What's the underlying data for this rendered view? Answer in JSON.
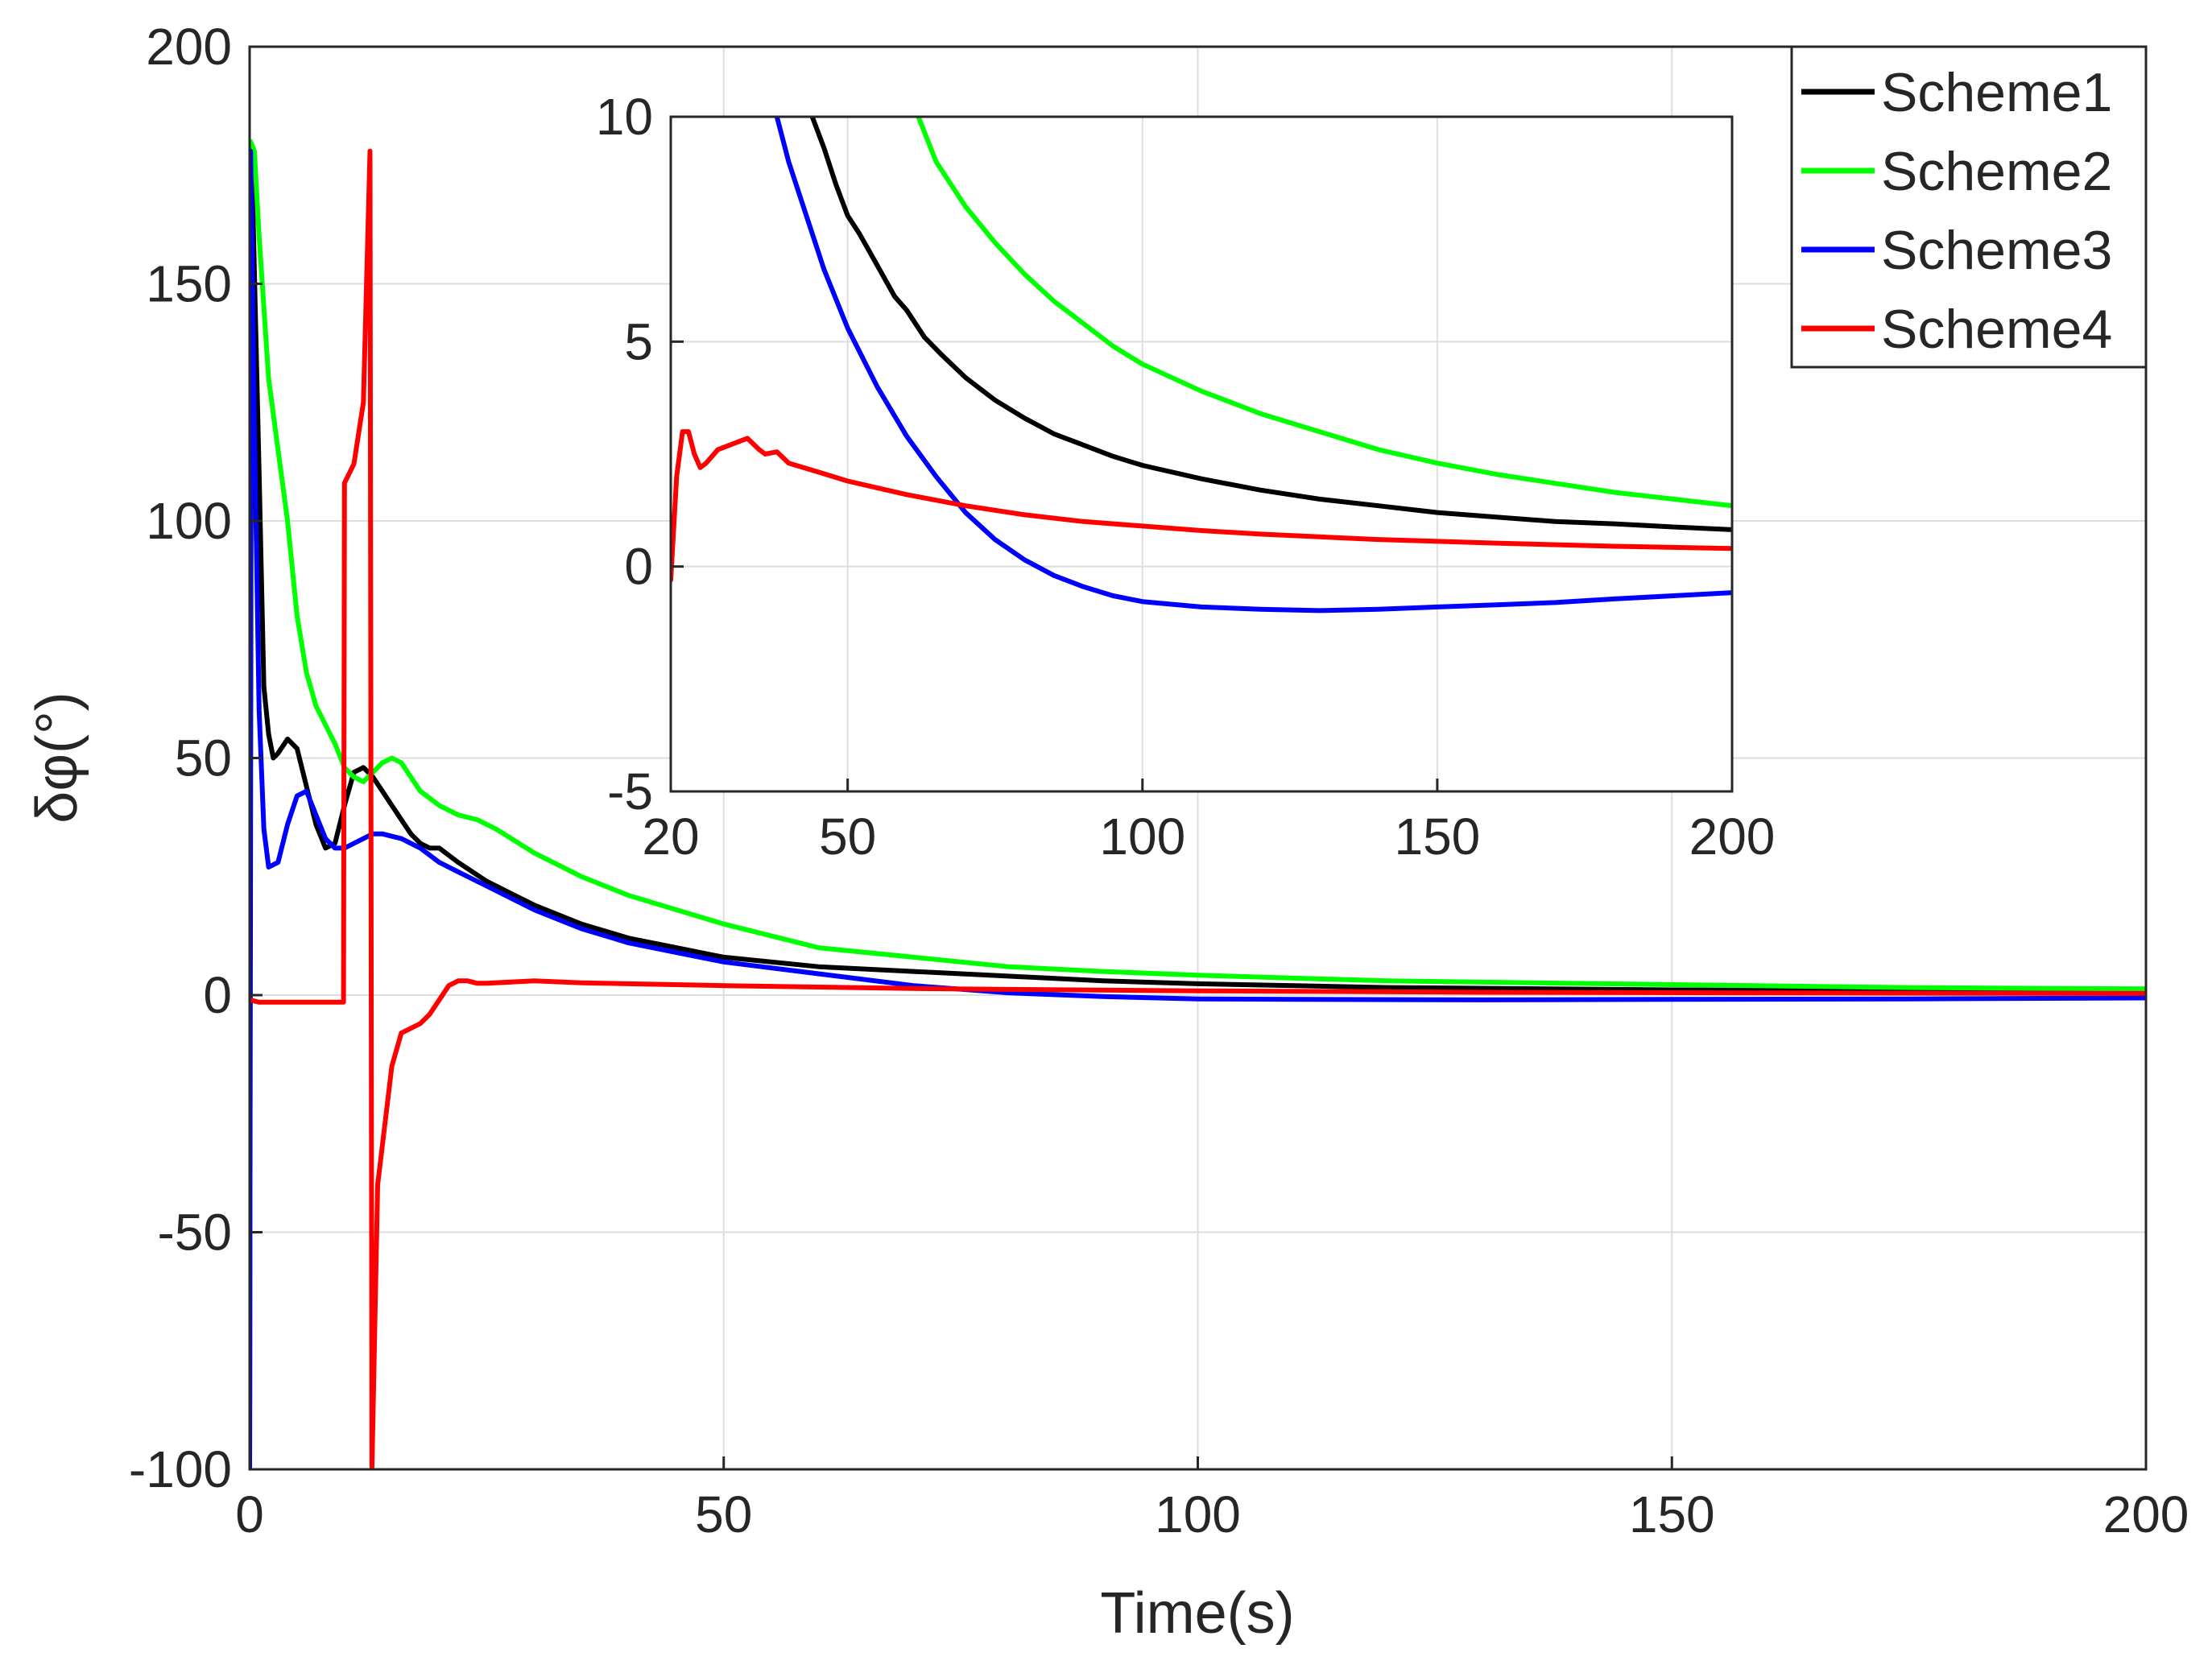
{
  "chart_data": {
    "type": "line",
    "main": {
      "xlabel": "Time(s)",
      "ylabel": "δφ(°)",
      "xlim": [
        0,
        200
      ],
      "ylim": [
        -100,
        200
      ],
      "xticks": [
        0,
        50,
        100,
        150,
        200
      ],
      "yticks": [
        -100,
        -50,
        0,
        50,
        100,
        150,
        200
      ],
      "grid": true,
      "series": [
        {
          "name": "Scheme1",
          "color": "#000000",
          "points": [
            [
              0,
              -100
            ],
            [
              0.2,
              178
            ],
            [
              1,
              110
            ],
            [
              1.5,
              65
            ],
            [
              2,
              55
            ],
            [
              2.5,
              50
            ],
            [
              3,
              51
            ],
            [
              4,
              54
            ],
            [
              5,
              52
            ],
            [
              6,
              44
            ],
            [
              7,
              36
            ],
            [
              8,
              31
            ],
            [
              9,
              32
            ],
            [
              10,
              40
            ],
            [
              11,
              47
            ],
            [
              12,
              48
            ],
            [
              13,
              46
            ],
            [
              14,
              43
            ],
            [
              15,
              40
            ],
            [
              16,
              37
            ],
            [
              17,
              34
            ],
            [
              18,
              32
            ],
            [
              19,
              31
            ],
            [
              20,
              31
            ],
            [
              22,
              28
            ],
            [
              25,
              24
            ],
            [
              30,
              19
            ],
            [
              35,
              15
            ],
            [
              40,
              12
            ],
            [
              45,
              10
            ],
            [
              50,
              8
            ],
            [
              60,
              6
            ],
            [
              70,
              5
            ],
            [
              80,
              4
            ],
            [
              90,
              3
            ],
            [
              100,
              2.4
            ],
            [
              120,
              1.6
            ],
            [
              150,
              1.1
            ],
            [
              175,
              0.9
            ],
            [
              200,
              0.8
            ]
          ]
        },
        {
          "name": "Scheme2",
          "color": "#00ff00",
          "points": [
            [
              0,
              -100
            ],
            [
              0.1,
              180
            ],
            [
              0.5,
              178
            ],
            [
              1,
              160
            ],
            [
              2,
              130
            ],
            [
              3,
              115
            ],
            [
              4,
              100
            ],
            [
              5,
              80
            ],
            [
              6,
              68
            ],
            [
              7,
              61
            ],
            [
              8,
              57
            ],
            [
              9,
              53
            ],
            [
              10,
              48
            ],
            [
              11,
              46
            ],
            [
              12,
              45
            ],
            [
              13,
              47
            ],
            [
              14,
              49
            ],
            [
              15,
              50
            ],
            [
              16,
              49
            ],
            [
              17,
              46
            ],
            [
              18,
              43
            ],
            [
              20,
              40
            ],
            [
              22,
              38
            ],
            [
              24,
              37
            ],
            [
              26,
              35
            ],
            [
              30,
              30
            ],
            [
              35,
              25
            ],
            [
              40,
              21
            ],
            [
              45,
              18
            ],
            [
              50,
              15
            ],
            [
              60,
              10
            ],
            [
              70,
              8
            ],
            [
              80,
              6
            ],
            [
              90,
              5
            ],
            [
              100,
              4.2
            ],
            [
              120,
              3
            ],
            [
              150,
              2.2
            ],
            [
              175,
              1.6
            ],
            [
              200,
              1.3
            ]
          ]
        },
        {
          "name": "Scheme3",
          "color": "#0000ff",
          "points": [
            [
              0,
              -100
            ],
            [
              0.1,
              178
            ],
            [
              0.5,
              120
            ],
            [
              1,
              60
            ],
            [
              1.5,
              35
            ],
            [
              2,
              27
            ],
            [
              3,
              28
            ],
            [
              4,
              36
            ],
            [
              5,
              42
            ],
            [
              6,
              43
            ],
            [
              7,
              38
            ],
            [
              8,
              33
            ],
            [
              9,
              31
            ],
            [
              10,
              31
            ],
            [
              11,
              32
            ],
            [
              12,
              33
            ],
            [
              13,
              34
            ],
            [
              14,
              34
            ],
            [
              15,
              33.5
            ],
            [
              16,
              33
            ],
            [
              18,
              31
            ],
            [
              20,
              28
            ],
            [
              22,
              26
            ],
            [
              25,
              23
            ],
            [
              30,
              18
            ],
            [
              35,
              14
            ],
            [
              40,
              11
            ],
            [
              45,
              9
            ],
            [
              50,
              7
            ],
            [
              60,
              4.5
            ],
            [
              70,
              2
            ],
            [
              80,
              0.5
            ],
            [
              90,
              -0.3
            ],
            [
              100,
              -0.8
            ],
            [
              110,
              -0.9
            ],
            [
              130,
              -1
            ],
            [
              150,
              -0.9
            ],
            [
              175,
              -0.8
            ],
            [
              200,
              -0.6
            ]
          ]
        },
        {
          "name": "Scheme4",
          "color": "#ff0000",
          "points": [
            [
              0,
              -1
            ],
            [
              1,
              -1.5
            ],
            [
              5,
              -1.5
            ],
            [
              9.9,
              -1.5
            ],
            [
              10,
              108
            ],
            [
              11,
              112
            ],
            [
              12,
              125
            ],
            [
              12.7,
              178
            ],
            [
              12.9,
              -100
            ],
            [
              13.5,
              -40
            ],
            [
              15,
              -15
            ],
            [
              16,
              -8
            ],
            [
              18,
              -6
            ],
            [
              19,
              -4
            ],
            [
              20,
              -1
            ],
            [
              21,
              2
            ],
            [
              22,
              3
            ],
            [
              23,
              3
            ],
            [
              24,
              2.5
            ],
            [
              25,
              2.5
            ],
            [
              28,
              2.8
            ],
            [
              30,
              3
            ],
            [
              35,
              2.6
            ],
            [
              40,
              2.4
            ],
            [
              50,
              2
            ],
            [
              60,
              1.7
            ],
            [
              70,
              1.4
            ],
            [
              80,
              1.2
            ],
            [
              100,
              0.9
            ],
            [
              130,
              0.6
            ],
            [
              160,
              0.45
            ],
            [
              200,
              0.35
            ]
          ]
        }
      ]
    },
    "inset": {
      "xlim": [
        20,
        200
      ],
      "ylim": [
        -5,
        10
      ],
      "xticks": [
        20,
        50,
        100,
        150,
        200
      ],
      "yticks": [
        -5,
        0,
        5,
        10
      ],
      "grid": true,
      "series": [
        {
          "name": "Scheme1",
          "color": "#000000",
          "points": [
            [
              44,
              10
            ],
            [
              46,
              9.3
            ],
            [
              48,
              8.5
            ],
            [
              50,
              7.8
            ],
            [
              52,
              7.4
            ],
            [
              55,
              6.7
            ],
            [
              58,
              6
            ],
            [
              60,
              5.7
            ],
            [
              63,
              5.1
            ],
            [
              66,
              4.7
            ],
            [
              70,
              4.2
            ],
            [
              75,
              3.7
            ],
            [
              80,
              3.3
            ],
            [
              85,
              2.95
            ],
            [
              90,
              2.7
            ],
            [
              95,
              2.45
            ],
            [
              100,
              2.25
            ],
            [
              110,
              1.95
            ],
            [
              120,
              1.7
            ],
            [
              130,
              1.5
            ],
            [
              140,
              1.35
            ],
            [
              150,
              1.2
            ],
            [
              160,
              1.1
            ],
            [
              170,
              1
            ],
            [
              180,
              0.95
            ],
            [
              190,
              0.88
            ],
            [
              200,
              0.82
            ]
          ]
        },
        {
          "name": "Scheme2",
          "color": "#00ff00",
          "points": [
            [
              62,
              10
            ],
            [
              65,
              9
            ],
            [
              70,
              8
            ],
            [
              75,
              7.2
            ],
            [
              80,
              6.5
            ],
            [
              85,
              5.9
            ],
            [
              90,
              5.4
            ],
            [
              95,
              4.9
            ],
            [
              100,
              4.5
            ],
            [
              110,
              3.9
            ],
            [
              120,
              3.4
            ],
            [
              130,
              3
            ],
            [
              140,
              2.6
            ],
            [
              150,
              2.3
            ],
            [
              160,
              2.05
            ],
            [
              170,
              1.85
            ],
            [
              180,
              1.65
            ],
            [
              190,
              1.5
            ],
            [
              200,
              1.35
            ]
          ]
        },
        {
          "name": "Scheme3",
          "color": "#0000ff",
          "points": [
            [
              38,
              10
            ],
            [
              40,
              9
            ],
            [
              43,
              7.8
            ],
            [
              46,
              6.6
            ],
            [
              50,
              5.3
            ],
            [
              55,
              4
            ],
            [
              60,
              2.9
            ],
            [
              65,
              2
            ],
            [
              70,
              1.2
            ],
            [
              75,
              0.6
            ],
            [
              80,
              0.15
            ],
            [
              85,
              -0.2
            ],
            [
              90,
              -0.45
            ],
            [
              95,
              -0.65
            ],
            [
              100,
              -0.78
            ],
            [
              110,
              -0.9
            ],
            [
              120,
              -0.95
            ],
            [
              130,
              -0.98
            ],
            [
              140,
              -0.95
            ],
            [
              150,
              -0.9
            ],
            [
              160,
              -0.85
            ],
            [
              170,
              -0.8
            ],
            [
              180,
              -0.72
            ],
            [
              190,
              -0.65
            ],
            [
              200,
              -0.58
            ]
          ]
        },
        {
          "name": "Scheme4",
          "color": "#ff0000",
          "points": [
            [
              20,
              -0.3
            ],
            [
              21,
              2
            ],
            [
              22,
              3
            ],
            [
              23,
              3
            ],
            [
              24,
              2.5
            ],
            [
              25,
              2.2
            ],
            [
              26,
              2.3
            ],
            [
              28,
              2.6
            ],
            [
              30,
              2.7
            ],
            [
              32,
              2.8
            ],
            [
              33,
              2.85
            ],
            [
              35,
              2.6
            ],
            [
              36,
              2.5
            ],
            [
              38,
              2.55
            ],
            [
              40,
              2.3
            ],
            [
              45,
              2.1
            ],
            [
              50,
              1.9
            ],
            [
              55,
              1.75
            ],
            [
              60,
              1.6
            ],
            [
              70,
              1.35
            ],
            [
              80,
              1.15
            ],
            [
              90,
              1
            ],
            [
              100,
              0.9
            ],
            [
              110,
              0.8
            ],
            [
              120,
              0.72
            ],
            [
              140,
              0.6
            ],
            [
              160,
              0.52
            ],
            [
              180,
              0.45
            ],
            [
              200,
              0.4
            ]
          ]
        }
      ]
    },
    "legend": {
      "position": "top-right",
      "entries": [
        {
          "label": "Scheme1",
          "color": "#000000"
        },
        {
          "label": "Scheme2",
          "color": "#00ff00"
        },
        {
          "label": "Scheme3",
          "color": "#0000ff"
        },
        {
          "label": "Scheme4",
          "color": "#ff0000"
        }
      ]
    }
  }
}
